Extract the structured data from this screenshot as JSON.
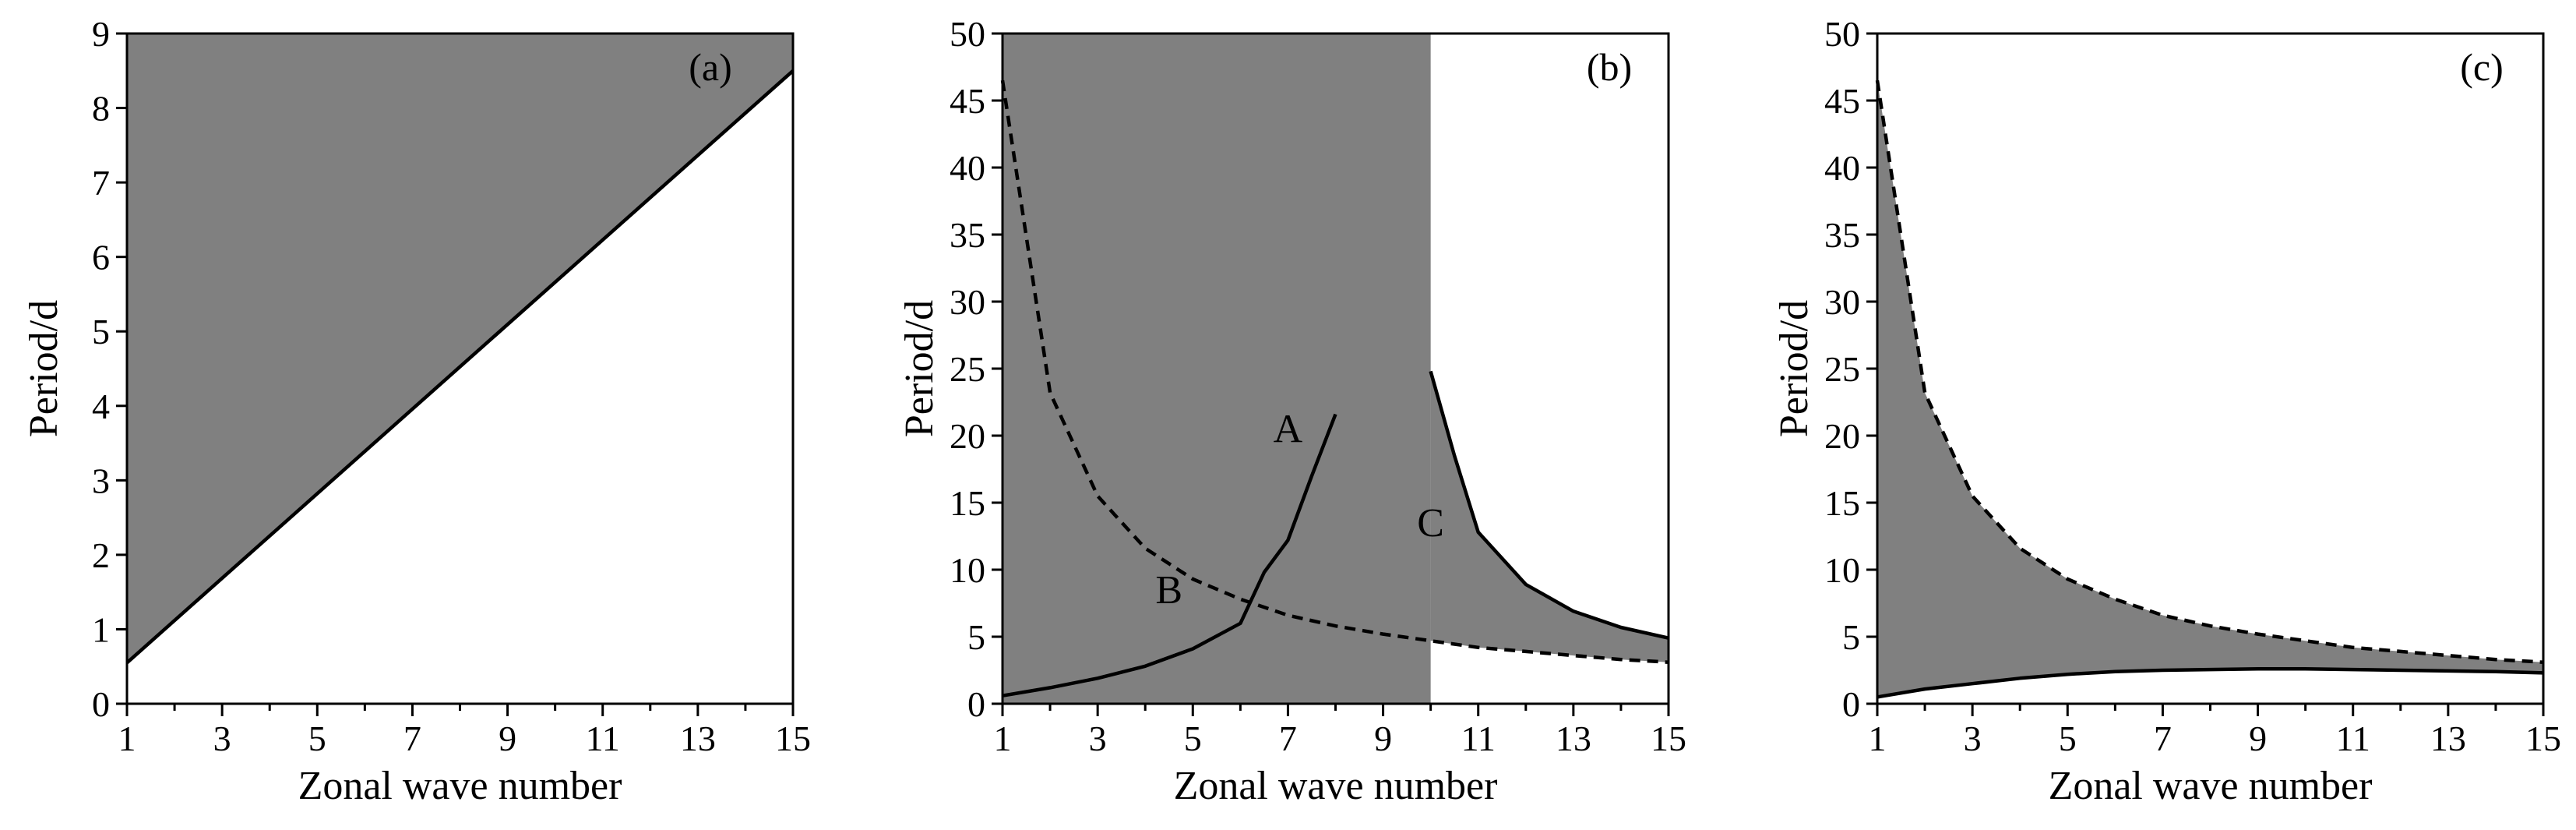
{
  "colors": {
    "shade": "#808080",
    "line": "#000000",
    "background": "#ffffff"
  },
  "chart_data": [
    {
      "type": "area",
      "panel_label": "(a)",
      "xlabel": "Zonal wave number",
      "ylabel": "Period/d",
      "xlim": [
        1,
        15
      ],
      "ylim": [
        0,
        9
      ],
      "xticks": [
        "1",
        "3",
        "5",
        "7",
        "9",
        "11",
        "13",
        "15"
      ],
      "yticks": [
        "0",
        "1",
        "2",
        "3",
        "4",
        "5",
        "6",
        "7",
        "8",
        "9"
      ],
      "shaded_region": "above solid line",
      "series": [
        {
          "style": "solid",
          "x": [
            1,
            15
          ],
          "y": [
            0.55,
            8.5
          ]
        }
      ]
    },
    {
      "type": "area",
      "panel_label": "(b)",
      "xlabel": "Zonal wave number",
      "ylabel": "Period/d",
      "xlim": [
        1,
        15
      ],
      "ylim": [
        0,
        50
      ],
      "xticks": [
        "1",
        "3",
        "5",
        "7",
        "9",
        "11",
        "13",
        "15"
      ],
      "yticks": [
        "0",
        "5",
        "10",
        "15",
        "20",
        "25",
        "30",
        "35",
        "40",
        "45",
        "50"
      ],
      "region_labels": [
        "A",
        "B",
        "C"
      ],
      "shaded_region": "full height for wave numbers 1 to 10; between dashed and solid curves for wave numbers 10 to 15",
      "series": [
        {
          "style": "dashed",
          "x": [
            1,
            2,
            3,
            4,
            5,
            6,
            7,
            8,
            9,
            10,
            11,
            12,
            13,
            14,
            15
          ],
          "y": [
            46.5,
            23.2,
            15.5,
            11.6,
            9.3,
            7.8,
            6.6,
            5.8,
            5.2,
            4.7,
            4.2,
            3.9,
            3.6,
            3.3,
            3.1
          ]
        },
        {
          "style": "solid",
          "x": [
            1,
            2,
            3,
            4,
            5,
            6,
            6.5,
            7,
            7.5,
            8
          ],
          "y": [
            0.6,
            1.2,
            1.9,
            2.8,
            4.1,
            6.0,
            9.8,
            12.2,
            17.0,
            21.6
          ]
        },
        {
          "style": "solid",
          "x": [
            10,
            10.5,
            11,
            12,
            13,
            14,
            15
          ],
          "y": [
            24.8,
            18.5,
            12.8,
            8.9,
            6.9,
            5.7,
            4.9
          ]
        }
      ]
    },
    {
      "type": "area",
      "panel_label": "(c)",
      "xlabel": "Zonal wave number",
      "ylabel": "Period/d",
      "xlim": [
        1,
        15
      ],
      "ylim": [
        0,
        50
      ],
      "xticks": [
        "1",
        "3",
        "5",
        "7",
        "9",
        "11",
        "13",
        "15"
      ],
      "yticks": [
        "0",
        "5",
        "10",
        "15",
        "20",
        "25",
        "30",
        "35",
        "40",
        "45",
        "50"
      ],
      "shaded_region": "between dashed and solid curves",
      "series": [
        {
          "style": "dashed",
          "x": [
            1,
            2,
            3,
            4,
            5,
            6,
            7,
            8,
            9,
            10,
            11,
            12,
            13,
            14,
            15
          ],
          "y": [
            46.5,
            23.2,
            15.5,
            11.6,
            9.3,
            7.8,
            6.6,
            5.8,
            5.2,
            4.7,
            4.2,
            3.9,
            3.6,
            3.3,
            3.1
          ]
        },
        {
          "style": "solid",
          "x": [
            1,
            2,
            3,
            4,
            5,
            6,
            7,
            8,
            9,
            10,
            11,
            12,
            13,
            14,
            15
          ],
          "y": [
            0.5,
            1.1,
            1.5,
            1.9,
            2.2,
            2.4,
            2.5,
            2.55,
            2.6,
            2.6,
            2.55,
            2.5,
            2.45,
            2.4,
            2.3
          ]
        }
      ]
    }
  ]
}
